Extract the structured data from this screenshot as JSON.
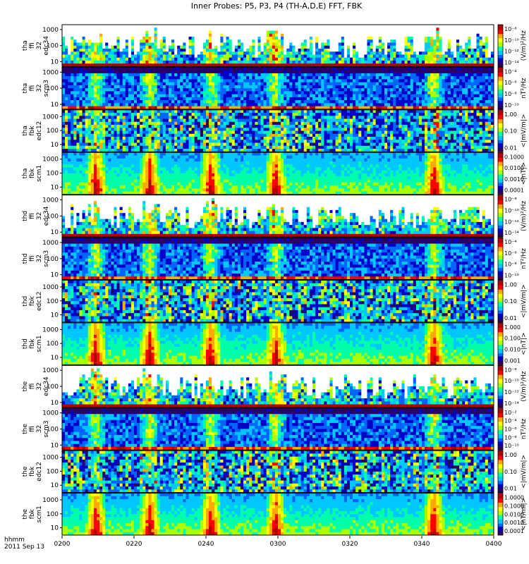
{
  "chart_data": {
    "type": "heatmap",
    "title": "Inner Probes: P5, P3, P4 (TH-A,D,E) FFT, FBK",
    "x_axis": {
      "ticks": [
        "0200",
        "0220",
        "0240",
        "0300",
        "0320",
        "0340",
        "0400"
      ],
      "range": [
        "02:00",
        "04:00"
      ],
      "corner_label": "hhmm",
      "date_label": "2011 Sep 13"
    },
    "panels": [
      {
        "probe": "tha",
        "line1": "tha",
        "line2": "ffi",
        "line3": "32",
        "line4": "edc34",
        "yticks": [
          "1000",
          "100",
          "10"
        ],
        "ylog": true,
        "yrange": [
          5,
          2000
        ],
        "cbar_unit": "(V/m)²/Hz",
        "cbar_ticks": [
          "10⁻⁸",
          "10⁻¹⁰",
          "10⁻¹²",
          "10⁻¹⁴"
        ],
        "kind": "efi_ffi"
      },
      {
        "probe": "tha",
        "line1": "tha",
        "line2": "ffi",
        "line3": "32",
        "line4": "scm3",
        "yticks": [
          "1000",
          "100",
          "10"
        ],
        "ylog": true,
        "yrange": [
          5,
          2000
        ],
        "cbar_unit": "nT²/Hz",
        "cbar_ticks": [
          "10⁻⁴",
          "10⁻⁶",
          "10⁻⁸",
          "10⁻¹⁰"
        ],
        "kind": "scm_ffi"
      },
      {
        "probe": "tha",
        "line1": "tha",
        "line2": "fbk",
        "line3": "",
        "line4": "edc12",
        "yticks": [
          "1000",
          "100",
          "10"
        ],
        "ylog": true,
        "yrange": [
          3,
          3000
        ],
        "cbar_unit": "<|mV/m|>",
        "cbar_ticks": [
          "1.00",
          "0.10",
          "0.01"
        ],
        "kind": "efi_fbk"
      },
      {
        "probe": "tha",
        "line1": "tha",
        "line2": "fbk",
        "line3": "",
        "line4": "scm1",
        "yticks": [
          "1000",
          "100",
          "10"
        ],
        "ylog": true,
        "yrange": [
          3,
          3000
        ],
        "cbar_unit": "<|nT|>",
        "cbar_ticks": [
          "0.1000",
          "0.0100",
          "0.0010",
          "0.0001"
        ],
        "kind": "scm_fbk"
      },
      {
        "probe": "thd",
        "line1": "thd",
        "line2": "ffi",
        "line3": "32",
        "line4": "edc34",
        "yticks": [
          "1000",
          "100",
          "10"
        ],
        "ylog": true,
        "yrange": [
          5,
          2000
        ],
        "cbar_unit": "(V/m)²/Hz",
        "cbar_ticks": [
          "10⁻⁸",
          "10⁻¹⁰",
          "10⁻¹²",
          "10⁻¹⁴"
        ],
        "kind": "efi_ffi"
      },
      {
        "probe": "thd",
        "line1": "thd",
        "line2": "ffi",
        "line3": "32",
        "line4": "scm3",
        "yticks": [
          "1000",
          "100",
          "10"
        ],
        "ylog": true,
        "yrange": [
          5,
          2000
        ],
        "cbar_unit": "nT²/Hz",
        "cbar_ticks": [
          "10⁻⁴",
          "10⁻⁶",
          "10⁻⁸",
          "10⁻¹⁰"
        ],
        "kind": "scm_ffi"
      },
      {
        "probe": "thd",
        "line1": "thd",
        "line2": "fbk",
        "line3": "",
        "line4": "edc12",
        "yticks": [
          "1000",
          "100",
          "10"
        ],
        "ylog": true,
        "yrange": [
          3,
          3000
        ],
        "cbar_unit": "<|mV/m|>",
        "cbar_ticks": [
          "1.00",
          "0.10",
          "0.01"
        ],
        "kind": "efi_fbk"
      },
      {
        "probe": "thd",
        "line1": "thd",
        "line2": "fbk",
        "line3": "",
        "line4": "scm1",
        "yticks": [
          "1000",
          "100",
          "10"
        ],
        "ylog": true,
        "yrange": [
          3,
          3000
        ],
        "cbar_unit": "<|nT|>",
        "cbar_ticks": [
          "1.000",
          "0.100",
          "0.010",
          "0.001"
        ],
        "kind": "scm_fbk"
      },
      {
        "probe": "the",
        "line1": "the",
        "line2": "ffi",
        "line3": "32",
        "line4": "edc34",
        "yticks": [
          "1000",
          "100",
          "10"
        ],
        "ylog": true,
        "yrange": [
          5,
          2000
        ],
        "cbar_unit": "(V/m)²/Hz",
        "cbar_ticks": [
          "10⁻⁸",
          "10⁻¹⁰",
          "10⁻¹²",
          "10⁻¹⁴"
        ],
        "kind": "efi_ffi"
      },
      {
        "probe": "the",
        "line1": "the",
        "line2": "ffi",
        "line3": "32",
        "line4": "scm3",
        "yticks": [
          "1000",
          "100",
          "10"
        ],
        "ylog": true,
        "yrange": [
          5,
          2000
        ],
        "cbar_unit": "nT²/Hz",
        "cbar_ticks": [
          "10⁻²",
          "10⁻⁴",
          "10⁻⁶",
          "10⁻⁸",
          "10⁻¹⁰"
        ],
        "kind": "scm_ffi"
      },
      {
        "probe": "the",
        "line1": "the",
        "line2": "fbk",
        "line3": "",
        "line4": "edc12",
        "yticks": [
          "1000",
          "100",
          "10"
        ],
        "ylog": true,
        "yrange": [
          3,
          3000
        ],
        "cbar_unit": "<|mV/m|>",
        "cbar_ticks": [
          "1.00",
          "0.10",
          "0.01"
        ],
        "kind": "efi_fbk"
      },
      {
        "probe": "the",
        "line1": "the",
        "line2": "fbk",
        "line3": "",
        "line4": "scm1",
        "yticks": [
          "1000",
          "100",
          "10"
        ],
        "ylog": true,
        "yrange": [
          3,
          3000
        ],
        "cbar_unit": "<|nT/ml|>",
        "cbar_ticks": [
          "1.0000",
          "0.1000",
          "0.0100",
          "0.0010",
          "0.0001"
        ],
        "kind": "scm_fbk"
      }
    ],
    "colormap": [
      "#2a0066",
      "#0000c8",
      "#0064ff",
      "#00c8ff",
      "#00ffaa",
      "#aaff00",
      "#ffff00",
      "#ffaa00",
      "#ff0000",
      "#b40000"
    ],
    "bursts_hhmm": [
      "0209",
      "0224",
      "0241",
      "0259",
      "0343"
    ]
  }
}
